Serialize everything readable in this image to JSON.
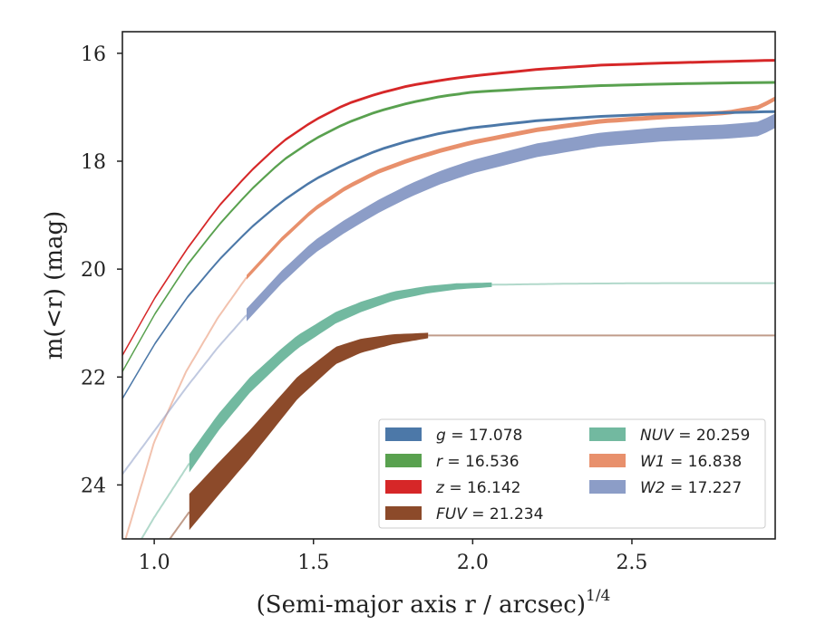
{
  "chart_data": {
    "type": "line",
    "xlabel": "(Semi-major axis r / arcsec)",
    "xlabel_sup": "1/4",
    "ylabel": "m(<r) (mag)",
    "xlim": [
      0.9,
      2.95
    ],
    "ylim": [
      25.0,
      15.6
    ],
    "y_inverted": true,
    "xticks": [
      1.0,
      1.5,
      2.0,
      2.5
    ],
    "xtick_labels": [
      "1.0",
      "1.5",
      "2.0",
      "2.5"
    ],
    "yticks": [
      16,
      18,
      20,
      22,
      24
    ],
    "ytick_labels": [
      "16",
      "18",
      "20",
      "22",
      "24"
    ],
    "grid": false,
    "legend_position": "lower-right",
    "series": [
      {
        "name": "g = 17.078",
        "band": "g",
        "mag": "17.078",
        "italic": false,
        "color": "#4c78a8",
        "width": [
          3,
          3
        ],
        "solid_range": [
          0.9,
          2.95
        ],
        "x": [
          0.9,
          1.0,
          1.1,
          1.2,
          1.3,
          1.4,
          1.5,
          1.6,
          1.7,
          1.8,
          1.9,
          2.0,
          2.2,
          2.4,
          2.6,
          2.8,
          2.95
        ],
        "y": [
          22.4,
          21.4,
          20.55,
          19.85,
          19.25,
          18.75,
          18.35,
          18.05,
          17.8,
          17.62,
          17.48,
          17.38,
          17.25,
          17.17,
          17.12,
          17.1,
          17.08
        ]
      },
      {
        "name": "r = 16.536",
        "band": "r",
        "mag": "16.536",
        "italic": false,
        "color": "#59a14f",
        "width": [
          3,
          3
        ],
        "solid_range": [
          0.9,
          2.95
        ],
        "x": [
          0.9,
          1.0,
          1.1,
          1.2,
          1.3,
          1.4,
          1.5,
          1.6,
          1.7,
          1.8,
          1.9,
          2.0,
          2.2,
          2.4,
          2.6,
          2.8,
          2.95
        ],
        "y": [
          21.9,
          20.85,
          19.95,
          19.2,
          18.55,
          18.0,
          17.6,
          17.3,
          17.08,
          16.92,
          16.8,
          16.72,
          16.65,
          16.6,
          16.57,
          16.55,
          16.54
        ]
      },
      {
        "name": "z = 16.142",
        "band": "z",
        "mag": "16.142",
        "italic": false,
        "color": "#d62728",
        "width": [
          3,
          3
        ],
        "solid_range": [
          0.9,
          2.95
        ],
        "x": [
          0.9,
          1.0,
          1.1,
          1.2,
          1.3,
          1.4,
          1.5,
          1.6,
          1.7,
          1.8,
          1.9,
          2.0,
          2.2,
          2.4,
          2.6,
          2.8,
          2.95
        ],
        "y": [
          21.6,
          20.55,
          19.65,
          18.85,
          18.2,
          17.65,
          17.25,
          16.95,
          16.75,
          16.6,
          16.5,
          16.42,
          16.3,
          16.22,
          16.18,
          16.15,
          16.13
        ]
      },
      {
        "name": "FUV = 21.234",
        "band": "FUV",
        "mag": "21.234",
        "italic": true,
        "color": "#8c4a2a",
        "width": [
          40,
          6
        ],
        "solid_range": [
          1.11,
          1.86
        ],
        "x": [
          0.9,
          1.0,
          1.11,
          1.2,
          1.3,
          1.4,
          1.45,
          1.5,
          1.57,
          1.65,
          1.75,
          1.86,
          2.0,
          2.3,
          2.6,
          2.95
        ],
        "y": [
          26.6,
          25.4,
          24.5,
          23.9,
          23.25,
          22.55,
          22.2,
          21.95,
          21.6,
          21.42,
          21.3,
          21.23,
          21.23,
          21.23,
          21.23,
          21.23
        ]
      },
      {
        "name": "NUV = 20.259",
        "band": "NUV",
        "mag": "20.259",
        "italic": true,
        "color": "#72b9a0",
        "width": [
          20,
          5
        ],
        "solid_range": [
          1.11,
          2.06
        ],
        "x": [
          0.9,
          1.0,
          1.11,
          1.2,
          1.3,
          1.4,
          1.45,
          1.57,
          1.65,
          1.75,
          1.86,
          1.95,
          2.06,
          2.3,
          2.6,
          2.95
        ],
        "y": [
          25.6,
          24.6,
          23.6,
          22.85,
          22.15,
          21.6,
          21.35,
          20.9,
          20.7,
          20.5,
          20.38,
          20.32,
          20.29,
          20.27,
          20.26,
          20.26
        ]
      },
      {
        "name": "W1 = 16.838",
        "band": "W1",
        "mag": "16.838",
        "italic": true,
        "color": "#e8906c",
        "width": [
          5,
          5
        ],
        "solid_range": [
          1.29,
          2.95
        ],
        "x": [
          0.9,
          1.0,
          1.1,
          1.2,
          1.29,
          1.4,
          1.5,
          1.6,
          1.7,
          1.8,
          1.9,
          2.0,
          2.2,
          2.4,
          2.6,
          2.8,
          2.9,
          2.95
        ],
        "y": [
          25.2,
          23.2,
          21.9,
          20.9,
          20.15,
          19.45,
          18.9,
          18.5,
          18.2,
          17.98,
          17.8,
          17.65,
          17.42,
          17.26,
          17.18,
          17.1,
          17.0,
          16.84
        ]
      },
      {
        "name": "W2 = 17.227",
        "band": "W2",
        "mag": "17.227",
        "italic": true,
        "color": "#8c9dc7",
        "width": [
          14,
          16
        ],
        "solid_range": [
          1.29,
          2.95
        ],
        "x": [
          0.9,
          1.0,
          1.1,
          1.2,
          1.29,
          1.4,
          1.5,
          1.6,
          1.7,
          1.8,
          1.9,
          2.0,
          2.2,
          2.4,
          2.6,
          2.8,
          2.9,
          2.95
        ],
        "y": [
          23.8,
          23.0,
          22.2,
          21.45,
          20.85,
          20.15,
          19.6,
          19.2,
          18.85,
          18.55,
          18.3,
          18.1,
          17.8,
          17.6,
          17.5,
          17.45,
          17.4,
          17.25
        ]
      }
    ]
  }
}
